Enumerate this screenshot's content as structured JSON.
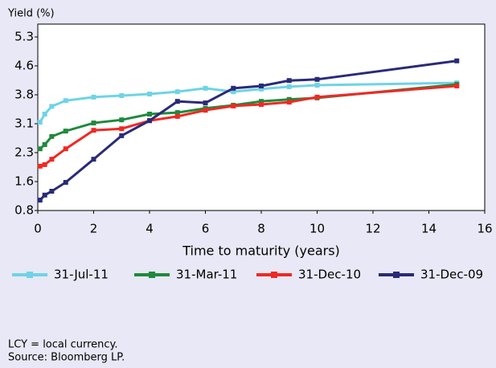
{
  "chart_data": {
    "type": "line",
    "y_axis_label": "Yield (%)",
    "x_axis_label": "Time to maturity (years)",
    "x": [
      0.08,
      0.25,
      0.5,
      1,
      2,
      3,
      4,
      5,
      6,
      7,
      8,
      9,
      10,
      15
    ],
    "series": [
      {
        "name": "31-Jul-11",
        "color": "#6fd3e6",
        "values": [
          3.09,
          3.3,
          3.5,
          3.65,
          3.74,
          3.78,
          3.82,
          3.88,
          3.97,
          3.88,
          3.95,
          4.01,
          4.05,
          4.11
        ]
      },
      {
        "name": "31-Mar-11",
        "color": "#1f8a3c",
        "values": [
          2.4,
          2.51,
          2.72,
          2.86,
          3.07,
          3.15,
          3.3,
          3.34,
          3.45,
          3.53,
          3.63,
          3.68,
          3.72,
          4.07
        ]
      },
      {
        "name": "31-Dec-10",
        "color": "#ee2a24",
        "values": [
          1.95,
          1.99,
          2.13,
          2.4,
          2.88,
          2.92,
          3.13,
          3.24,
          3.4,
          3.51,
          3.55,
          3.61,
          3.74,
          4.03
        ]
      },
      {
        "name": "31-Dec-09",
        "color": "#2a2a78",
        "values": [
          1.07,
          1.2,
          1.3,
          1.53,
          2.13,
          2.74,
          3.13,
          3.63,
          3.59,
          3.97,
          4.03,
          4.17,
          4.2,
          4.68
        ]
      }
    ],
    "xlim": [
      0,
      16
    ],
    "xticks": [
      0,
      2,
      4,
      6,
      8,
      10,
      12,
      14,
      16
    ],
    "ylim": [
      0.8,
      5.3
    ],
    "yticks": [
      0.8,
      {
        "value": 1.55,
        "label": "1.6"
      },
      2.3,
      {
        "value": 3.05,
        "label": "3.1"
      },
      3.8,
      {
        "value": 4.55,
        "label": "4.6"
      },
      5.3
    ],
    "legend": "bottom",
    "notes": [
      "LCY = local currency.",
      "Source: Bloomberg LP."
    ]
  }
}
